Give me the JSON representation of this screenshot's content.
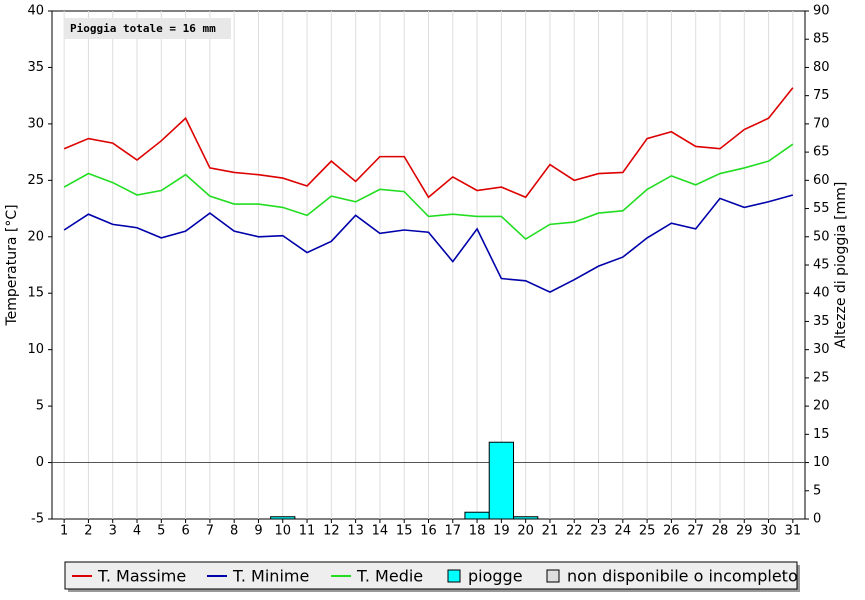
{
  "chart_data": {
    "type": "line",
    "annotation": "Pioggia totale = 16 mm",
    "y_label": "Temperatura [°C]",
    "y2_label": "Altezze di pioggia [mm]",
    "categories": [
      "1",
      "2",
      "3",
      "4",
      "5",
      "6",
      "7",
      "8",
      "9",
      "10",
      "11",
      "12",
      "13",
      "14",
      "15",
      "16",
      "17",
      "18",
      "19",
      "20",
      "21",
      "22",
      "23",
      "24",
      "25",
      "26",
      "27",
      "28",
      "29",
      "30",
      "31"
    ],
    "ylim": [
      -5,
      40
    ],
    "yticks": [
      -5,
      0,
      5,
      10,
      15,
      20,
      25,
      30,
      35,
      40
    ],
    "y2lim": [
      0,
      90
    ],
    "y2ticks": [
      0,
      5,
      10,
      15,
      20,
      25,
      30,
      35,
      40,
      45,
      50,
      55,
      60,
      65,
      70,
      75,
      80,
      85,
      90
    ],
    "grid": true,
    "series": [
      {
        "name": "T. Massime",
        "type": "line",
        "color": "#dd0000",
        "values": [
          27.8,
          28.7,
          28.3,
          26.8,
          28.5,
          30.5,
          26.1,
          25.7,
          25.5,
          25.2,
          24.5,
          26.7,
          24.9,
          27.1,
          27.1,
          23.5,
          25.3,
          24.1,
          24.4,
          23.5,
          26.4,
          25.0,
          25.6,
          25.7,
          28.7,
          29.3,
          28.0,
          27.8,
          29.5,
          30.5,
          33.2
        ]
      },
      {
        "name": "T. Minime",
        "type": "line",
        "color": "#0000aa",
        "values": [
          20.6,
          22.0,
          21.1,
          20.8,
          19.9,
          20.5,
          22.1,
          20.5,
          20.0,
          20.1,
          18.6,
          19.6,
          21.9,
          20.3,
          20.6,
          20.4,
          17.8,
          20.7,
          16.3,
          16.1,
          15.1,
          16.2,
          17.4,
          18.2,
          19.9,
          21.2,
          20.7,
          23.4,
          22.6,
          23.1,
          23.7
        ]
      },
      {
        "name": "T. Medie",
        "type": "line",
        "color": "#22dd22",
        "values": [
          24.4,
          25.6,
          24.8,
          23.7,
          24.1,
          25.5,
          23.6,
          22.9,
          22.9,
          22.6,
          21.9,
          23.6,
          23.1,
          24.2,
          24.0,
          21.8,
          22.0,
          21.8,
          21.8,
          19.8,
          21.1,
          21.3,
          22.1,
          22.3,
          24.2,
          25.4,
          24.6,
          25.6,
          26.1,
          26.7,
          28.2
        ]
      },
      {
        "name": "piogge",
        "type": "bar",
        "axis": "y2",
        "color": "#00ffff",
        "values": [
          null,
          null,
          null,
          null,
          null,
          null,
          null,
          null,
          null,
          0.4,
          null,
          null,
          null,
          null,
          null,
          null,
          null,
          1.2,
          13.6,
          0.4,
          null,
          null,
          null,
          null,
          null,
          null,
          null,
          null,
          null,
          null,
          null
        ]
      },
      {
        "name": "non disponibile o incompleto",
        "type": "bar",
        "axis": "y2",
        "color": "#dddddd",
        "values": [
          null,
          null,
          null,
          null,
          null,
          null,
          null,
          null,
          null,
          null,
          null,
          null,
          null,
          null,
          null,
          null,
          null,
          null,
          null,
          null,
          null,
          null,
          null,
          null,
          null,
          null,
          null,
          null,
          null,
          null,
          null
        ]
      }
    ]
  }
}
